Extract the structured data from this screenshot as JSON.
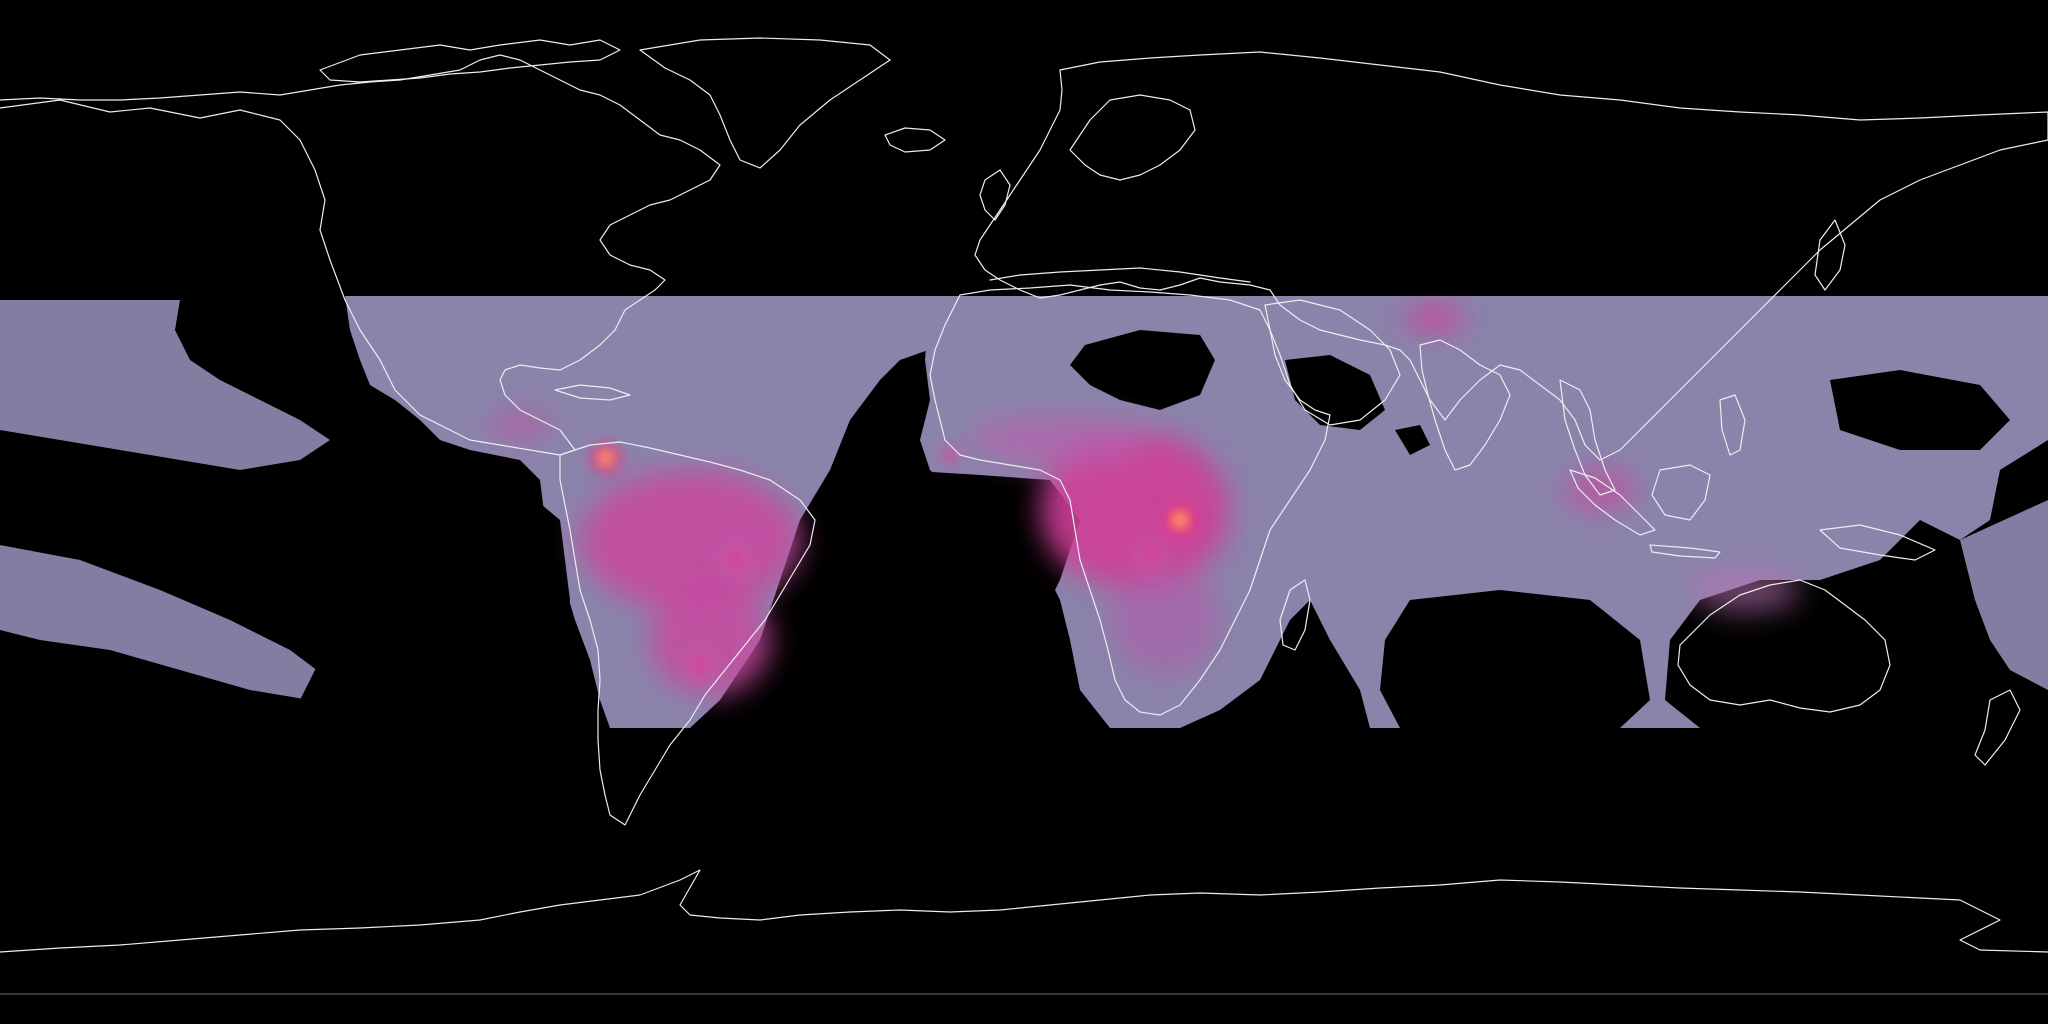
{
  "map": {
    "projection": "equirectangular",
    "data_band_latitudes": [
      38,
      -38
    ],
    "background_color": "#000000",
    "coastline_color": "#e6f0ee",
    "base_color": "#8a84ab",
    "colormap": [
      "#8a84ab",
      "#b86fb0",
      "#e02e8c",
      "#ff1f5a",
      "#ffd24a",
      "#ffffff"
    ],
    "hotspots": [
      {
        "name": "lake-maracaibo",
        "lon": -71.5,
        "lat": 9.8,
        "intensity": 1.0
      },
      {
        "name": "congo-basin-east",
        "lon": 28.5,
        "lat": -1.5,
        "intensity": 1.0
      },
      {
        "name": "congo-basin",
        "lon": 20,
        "lat": -3,
        "intensity": 0.55
      },
      {
        "name": "amazon-central",
        "lon": -60,
        "lat": -5,
        "intensity": 0.5
      },
      {
        "name": "amazon-south",
        "lon": -52,
        "lat": -15,
        "intensity": 0.45
      },
      {
        "name": "parana-basin",
        "lon": -55,
        "lat": -25,
        "intensity": 0.45
      },
      {
        "name": "gulf-of-guinea",
        "lon": 5,
        "lat": 6,
        "intensity": 0.45
      },
      {
        "name": "himalaya-west",
        "lon": 74,
        "lat": 34,
        "intensity": 0.45
      },
      {
        "name": "sumatra-malaysia",
        "lon": 101,
        "lat": 2,
        "intensity": 0.4
      },
      {
        "name": "central-america",
        "lon": -84,
        "lat": 10,
        "intensity": 0.35
      },
      {
        "name": "borneo",
        "lon": 114,
        "lat": 0,
        "intensity": 0.3
      },
      {
        "name": "northern-australia",
        "lon": 130,
        "lat": -14,
        "intensity": 0.3
      },
      {
        "name": "eastern-africa-south",
        "lon": 30,
        "lat": -12,
        "intensity": 0.3
      }
    ]
  }
}
